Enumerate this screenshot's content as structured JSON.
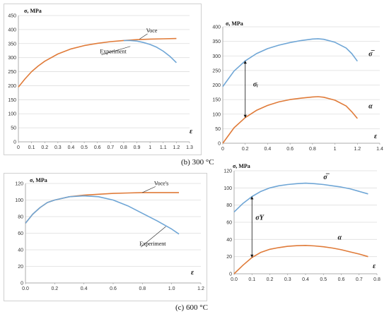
{
  "captions": {
    "b": "(b) 300 °C",
    "c": "(c) 600 °C"
  },
  "colors": {
    "orange": "#E07B39",
    "blue": "#6FA6D6",
    "grid": "#dedede",
    "axis": "#999999",
    "text": "#333333"
  },
  "chart_data": [
    {
      "type": "line",
      "ylabel": "σ, MPa",
      "xlabel": "ε",
      "xlim": [
        0,
        1.3
      ],
      "ylim": [
        0,
        450
      ],
      "xticks": [
        0,
        0.1,
        0.2,
        0.3,
        0.4,
        0.5,
        0.6,
        0.7,
        0.8,
        0.9,
        1,
        1.1,
        1.2,
        1.3
      ],
      "xtick_labels": [
        "0",
        "0.1",
        "0.2",
        "0.3",
        "0.4",
        "0.5",
        "0.6",
        "0.7",
        "0.8",
        "0.9",
        "1",
        "1.1",
        "1.2",
        "1.3"
      ],
      "yticks": [
        0,
        50,
        100,
        150,
        200,
        250,
        300,
        350,
        400,
        450
      ],
      "ytick_labels": [
        "0",
        "50",
        "100",
        "150",
        "200",
        "250",
        "300",
        "350",
        "400",
        "450"
      ],
      "grid": true,
      "series": [
        {
          "name": "Voce",
          "color": "orange",
          "x": [
            0,
            0.05,
            0.1,
            0.15,
            0.2,
            0.3,
            0.4,
            0.5,
            0.6,
            0.7,
            0.8,
            0.9,
            1.0,
            1.1,
            1.2
          ],
          "y": [
            195,
            224,
            250,
            270,
            287,
            313,
            331,
            343,
            351,
            357,
            361,
            364,
            366,
            367,
            368
          ]
        },
        {
          "name": "Experiment",
          "color": "blue",
          "x": [
            0.8,
            0.85,
            0.9,
            0.95,
            1.0,
            1.05,
            1.1,
            1.15,
            1.2
          ],
          "y": [
            361,
            361,
            359,
            354,
            347,
            337,
            323,
            305,
            282
          ]
        }
      ],
      "annotations": [
        {
          "text": "Voce",
          "x": 0.97,
          "y": 390,
          "line_to": [
            0.92,
            366
          ]
        },
        {
          "text": "Experiment",
          "x": 0.62,
          "y": 315,
          "line_to": [
            0.85,
            340
          ]
        }
      ]
    },
    {
      "type": "line",
      "ylabel": "σ, MPa",
      "xlabel": "ε",
      "xlim": [
        0,
        1.4
      ],
      "ylim": [
        0,
        400
      ],
      "xticks": [
        0,
        0.2,
        0.4,
        0.6,
        0.8,
        1,
        1.2,
        1.4
      ],
      "xtick_labels": [
        "0",
        "0.2",
        "0.4",
        "0.6",
        "0.8",
        "1",
        "1.2",
        "1.4"
      ],
      "yticks": [
        0,
        50,
        100,
        150,
        200,
        250,
        300,
        350,
        400
      ],
      "ytick_labels": [
        "0",
        "50",
        "100",
        "150",
        "200",
        "250",
        "300",
        "350",
        "400"
      ],
      "grid": true,
      "series": [
        {
          "name": "σ̅",
          "color": "blue",
          "x": [
            0,
            0.1,
            0.2,
            0.3,
            0.4,
            0.5,
            0.6,
            0.7,
            0.8,
            0.85,
            0.9,
            1.0,
            1.1,
            1.15,
            1.2
          ],
          "y": [
            195,
            248,
            283,
            308,
            325,
            337,
            346,
            353,
            358,
            359,
            357,
            347,
            327,
            308,
            282
          ]
        },
        {
          "name": "α",
          "color": "orange",
          "x": [
            0,
            0.1,
            0.2,
            0.3,
            0.4,
            0.5,
            0.6,
            0.7,
            0.8,
            0.85,
            0.9,
            1.0,
            1.1,
            1.15,
            1.2
          ],
          "y": [
            0,
            53,
            88,
            113,
            130,
            142,
            150,
            155,
            159,
            160,
            158,
            148,
            128,
            108,
            85
          ]
        }
      ],
      "annotations": [
        {
          "text": "σ̅",
          "x": 1.3,
          "y": 300
        },
        {
          "text": "α",
          "x": 1.3,
          "y": 120
        },
        {
          "text": "σᵢ",
          "x": 0.27,
          "y": 195,
          "arrow": {
            "x": 0.2,
            "from": 88,
            "to": 283
          }
        }
      ]
    },
    {
      "type": "line",
      "ylabel": "σ, MPa",
      "xlabel": "ε",
      "xlim": [
        0,
        1.2
      ],
      "ylim": [
        0,
        120
      ],
      "xticks": [
        0,
        0.2,
        0.4,
        0.6,
        0.8,
        1,
        1.2
      ],
      "xtick_labels": [
        "0.0",
        "0.2",
        "0.4",
        "0.6",
        "0.8",
        "1.0",
        "1.2"
      ],
      "yticks": [
        0,
        20,
        40,
        60,
        80,
        100,
        120
      ],
      "ytick_labels": [
        "0",
        "20",
        "40",
        "60",
        "80",
        "100",
        "120"
      ],
      "grid": true,
      "series": [
        {
          "name": "Voce's",
          "color": "orange",
          "x": [
            0,
            0.05,
            0.1,
            0.15,
            0.2,
            0.3,
            0.4,
            0.5,
            0.6,
            0.7,
            0.8,
            0.9,
            1.0,
            1.05
          ],
          "y": [
            72,
            83,
            91,
            97,
            100,
            104,
            106,
            107,
            108,
            108.5,
            109,
            109,
            109,
            109
          ]
        },
        {
          "name": "Experiment",
          "color": "blue",
          "x": [
            0,
            0.05,
            0.1,
            0.15,
            0.2,
            0.3,
            0.4,
            0.5,
            0.6,
            0.7,
            0.8,
            0.9,
            1.0,
            1.05
          ],
          "y": [
            72,
            83,
            91,
            97,
            100,
            104,
            105,
            104,
            100,
            93,
            84,
            75,
            65,
            59
          ]
        }
      ],
      "annotations": [
        {
          "text": "Voce's",
          "x": 0.88,
          "y": 118,
          "line_to": [
            0.8,
            109
          ]
        },
        {
          "text": "Experiment",
          "x": 0.78,
          "y": 45,
          "line_to": [
            0.96,
            68
          ]
        }
      ]
    },
    {
      "type": "line",
      "ylabel": "σ, MPa",
      "xlabel": "ε",
      "xlim": [
        0,
        0.8
      ],
      "ylim": [
        0,
        120
      ],
      "xticks": [
        0,
        0.1,
        0.2,
        0.3,
        0.4,
        0.5,
        0.6,
        0.7,
        0.8
      ],
      "xtick_labels": [
        "0.0",
        "0.1",
        "0.2",
        "0.3",
        "0.4",
        "0.5",
        "0.6",
        "0.7",
        "0.8"
      ],
      "yticks": [
        0,
        20,
        40,
        60,
        80,
        100,
        120
      ],
      "ytick_labels": [
        "0",
        "20",
        "40",
        "60",
        "80",
        "100",
        "120"
      ],
      "grid": true,
      "series": [
        {
          "name": "σ̅",
          "color": "blue",
          "x": [
            0,
            0.05,
            0.1,
            0.15,
            0.2,
            0.25,
            0.3,
            0.35,
            0.4,
            0.45,
            0.5,
            0.55,
            0.6,
            0.65,
            0.7,
            0.75
          ],
          "y": [
            72,
            82,
            90,
            96,
            100,
            102.5,
            104,
            105,
            105.5,
            105,
            104,
            102.5,
            101,
            99,
            96,
            93
          ]
        },
        {
          "name": "α",
          "color": "orange",
          "x": [
            0,
            0.05,
            0.1,
            0.15,
            0.2,
            0.25,
            0.3,
            0.35,
            0.4,
            0.45,
            0.5,
            0.55,
            0.6,
            0.65,
            0.7,
            0.75
          ],
          "y": [
            0,
            10,
            19,
            25,
            28.5,
            30.5,
            32,
            32.7,
            33,
            32.5,
            31.5,
            30,
            28,
            25.5,
            23,
            20
          ]
        }
      ],
      "annotations": [
        {
          "text": "σ̅",
          "x": 0.5,
          "y": 110
        },
        {
          "text": "α",
          "x": 0.58,
          "y": 40
        },
        {
          "text": "σY",
          "x": 0.12,
          "y": 63,
          "arrow": {
            "x": 0.1,
            "from": 19,
            "to": 90
          }
        }
      ]
    }
  ]
}
